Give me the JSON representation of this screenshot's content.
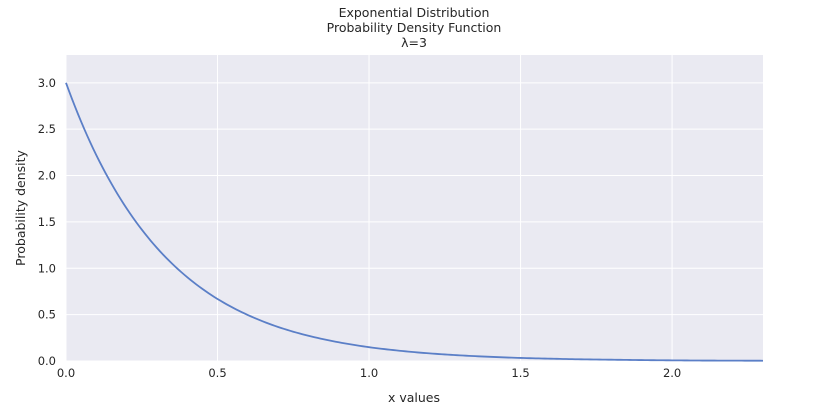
{
  "chart_data": {
    "type": "line",
    "title_lines": [
      "Exponential Distribution",
      "Probability Density Function",
      "λ=3"
    ],
    "xlabel": "x values",
    "ylabel": "Probability density",
    "xlim": [
      0,
      2.3
    ],
    "ylim": [
      0,
      3.3
    ],
    "x_ticks": [
      0.0,
      0.5,
      1.0,
      1.5,
      2.0
    ],
    "x_tick_labels": [
      "0.0",
      "0.5",
      "1.0",
      "1.5",
      "2.0"
    ],
    "y_ticks": [
      0.0,
      0.5,
      1.0,
      1.5,
      2.0,
      2.5,
      3.0
    ],
    "y_tick_labels": [
      "0.0",
      "0.5",
      "1.0",
      "1.5",
      "2.0",
      "2.5",
      "3.0"
    ],
    "grid": true,
    "background_color": "#eaeaf2",
    "grid_color": "#ffffff",
    "series": [
      {
        "color": "#5b7fc7",
        "x": [
          0.0,
          0.1,
          0.2,
          0.3,
          0.4,
          0.5,
          0.6,
          0.7,
          0.8,
          0.9,
          1.0,
          1.1,
          1.2,
          1.3,
          1.4,
          1.5,
          1.6,
          1.7,
          1.8,
          1.9,
          2.0,
          2.1,
          2.2,
          2.3
        ],
        "y": [
          3.0,
          2.22,
          1.646,
          1.22,
          0.904,
          0.669,
          0.496,
          0.367,
          0.272,
          0.202,
          0.149,
          0.111,
          0.082,
          0.061,
          0.045,
          0.033,
          0.025,
          0.018,
          0.014,
          0.01,
          0.007,
          0.005,
          0.004,
          0.003
        ]
      }
    ]
  }
}
